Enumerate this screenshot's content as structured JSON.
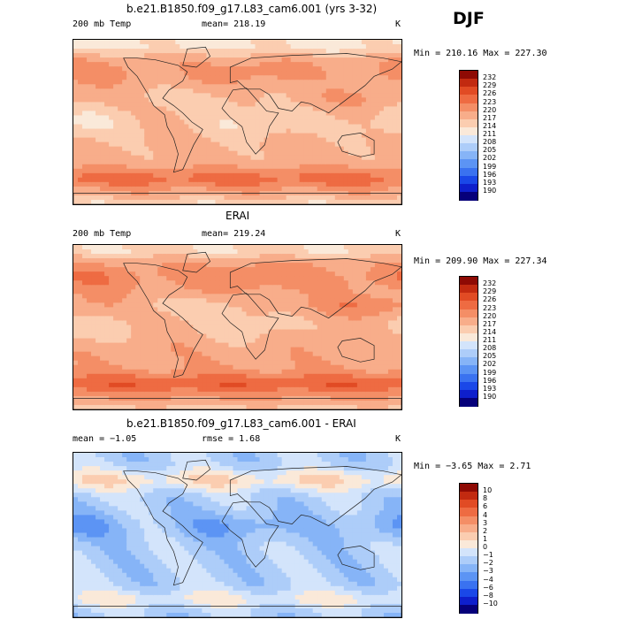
{
  "season": "DJF",
  "colors": {
    "temp_scale": [
      "#06007a",
      "#0e1fcc",
      "#1a48e8",
      "#3a72f0",
      "#5c94f4",
      "#86b4f7",
      "#adcdf9",
      "#d3e4fb",
      "#fae9d9",
      "#fbcdb0",
      "#f8ad8a",
      "#f48e66",
      "#ee6b42",
      "#e14b24",
      "#c22a10",
      "#8e0a04"
    ],
    "diff_scale": [
      "#06007a",
      "#0e1fcc",
      "#1a48e8",
      "#3a72f0",
      "#5c94f4",
      "#86b4f7",
      "#adcdf9",
      "#d3e4fb",
      "#fae9d9",
      "#fbcdb0",
      "#f8ad8a",
      "#f48e66",
      "#ee6b42",
      "#e14b24",
      "#c22a10",
      "#8e0a04"
    ]
  },
  "panels": [
    {
      "title": "b.e21.B1850.f09_g17.L83_cam6.001 (yrs 3-32)",
      "variable": "200 mb Temp",
      "stat": "mean=  218.19",
      "units": "K",
      "minmax": "Min = 210.16  Max = 227.30",
      "levels": [
        "232",
        "229",
        "226",
        "223",
        "220",
        "217",
        "214",
        "211",
        "208",
        "205",
        "202",
        "199",
        "196",
        "193",
        "190"
      ],
      "field": "temp"
    },
    {
      "title": "ERAI",
      "variable": "200 mb Temp",
      "stat": "mean=  219.24",
      "units": "K",
      "minmax": "Min = 209.90  Max = 227.34",
      "levels": [
        "232",
        "229",
        "226",
        "223",
        "220",
        "217",
        "214",
        "211",
        "208",
        "205",
        "202",
        "199",
        "196",
        "193",
        "190"
      ],
      "field": "temp"
    },
    {
      "title": "b.e21.B1850.f09_g17.L83_cam6.001 - ERAI",
      "variable": "mean =   −1.05",
      "stat": "rmse =    1.68",
      "units": "K",
      "minmax": "Min =   −3.65  Max =     2.71",
      "levels": [
        "10",
        "8",
        "6",
        "4",
        "3",
        "2",
        "1",
        "0",
        "−1",
        "−2",
        "−3",
        "−4",
        "−6",
        "−8",
        "−10"
      ],
      "field": "diff"
    }
  ]
}
